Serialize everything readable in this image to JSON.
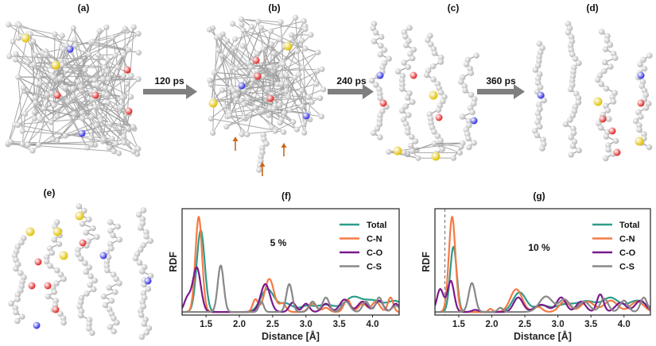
{
  "panels": {
    "a": "(a)",
    "b": "(b)",
    "c": "(c)",
    "d": "(d)",
    "e": "(e)",
    "f": "(f)",
    "g": "(g)"
  },
  "steps": [
    "120 ps",
    "240 ps",
    "360 ps"
  ],
  "colors": {
    "carbon": "#b4b4b4",
    "nitrogen": "#2a2ae0",
    "oxygen": "#e02020",
    "sulfur": "#e0c000",
    "arrow": "#7f7f7f",
    "marker_arrow": "#c8671a"
  },
  "chart_data": [
    {
      "type": "line",
      "panel": "(f)",
      "annotation": "5 %",
      "xlabel": "Distance [Å]",
      "ylabel": "RDF",
      "xlim": [
        1.14,
        4.4
      ],
      "ylim": [
        -0.03,
        1.0
      ],
      "xticks": [
        "1.5",
        "2.0",
        "2.5",
        "3.0",
        "3.5",
        "4.0"
      ],
      "legend": "top-right",
      "vline": null,
      "series": [
        {
          "name": "Total",
          "color": "#2e9c8a",
          "peaks": [
            [
              1.42,
              0.79,
              0.06
            ],
            [
              2.42,
              0.22,
              0.1
            ],
            [
              2.7,
              0.08,
              0.1
            ],
            [
              3.0,
              0.05,
              0.1
            ],
            [
              3.3,
              0.07,
              0.15
            ],
            [
              3.7,
              0.13,
              0.12
            ],
            [
              4.0,
              0.11,
              0.15
            ],
            [
              4.35,
              0.1,
              0.12
            ]
          ]
        },
        {
          "name": "C-N",
          "color": "#f47a45",
          "peaks": [
            [
              1.39,
              0.92,
              0.05
            ],
            [
              2.24,
              0.12,
              0.04
            ],
            [
              2.45,
              0.32,
              0.07
            ],
            [
              2.65,
              0.08,
              0.05
            ],
            [
              3.1,
              0.08,
              0.06
            ],
            [
              3.3,
              0.04,
              0.05
            ],
            [
              3.62,
              0.12,
              0.05
            ],
            [
              3.85,
              0.08,
              0.06
            ],
            [
              4.05,
              0.1,
              0.06
            ],
            [
              4.27,
              0.14,
              0.04
            ]
          ]
        },
        {
          "name": "C-O",
          "color": "#7a1a8c",
          "peaks": [
            [
              1.22,
              0.13,
              0.05
            ],
            [
              1.36,
              0.43,
              0.06
            ],
            [
              2.39,
              0.27,
              0.07
            ],
            [
              2.8,
              0.09,
              0.05
            ],
            [
              3.0,
              0.08,
              0.05
            ],
            [
              3.3,
              0.08,
              0.06
            ],
            [
              3.58,
              0.12,
              0.07
            ],
            [
              3.85,
              0.1,
              0.07
            ],
            [
              4.1,
              0.11,
              0.06
            ],
            [
              4.35,
              0.08,
              0.05
            ]
          ]
        },
        {
          "name": "C-S",
          "color": "#888888",
          "peaks": [
            [
              1.72,
              0.45,
              0.045
            ],
            [
              2.33,
              0.1,
              0.035
            ],
            [
              2.75,
              0.27,
              0.045
            ],
            [
              3.1,
              0.1,
              0.05
            ],
            [
              3.3,
              0.14,
              0.05
            ],
            [
              3.6,
              0.1,
              0.06
            ],
            [
              3.9,
              0.1,
              0.05
            ],
            [
              4.1,
              0.14,
              0.05
            ],
            [
              4.35,
              0.06,
              0.06
            ]
          ]
        }
      ]
    },
    {
      "type": "line",
      "panel": "(g)",
      "annotation": "10 %",
      "xlabel": "Distance [Å]",
      "ylabel": "RDF",
      "xlim": [
        1.14,
        4.4
      ],
      "ylim": [
        -0.03,
        1.0
      ],
      "xticks": [
        "1.5",
        "2.0",
        "2.5",
        "3.0",
        "3.5",
        "4.0"
      ],
      "legend": "top-right",
      "vline": 1.29,
      "series": [
        {
          "name": "Total",
          "color": "#2e9c8a",
          "peaks": [
            [
              1.42,
              0.63,
              0.05
            ],
            [
              2.42,
              0.19,
              0.1
            ],
            [
              2.75,
              0.06,
              0.1
            ],
            [
              3.1,
              0.07,
              0.15
            ],
            [
              3.45,
              0.1,
              0.15
            ],
            [
              3.8,
              0.13,
              0.12
            ],
            [
              4.2,
              0.11,
              0.15
            ]
          ]
        },
        {
          "name": "C-N",
          "color": "#f47a45",
          "peaks": [
            [
              1.4,
              0.92,
              0.05
            ],
            [
              1.98,
              0.03,
              0.03
            ],
            [
              2.37,
              0.22,
              0.09
            ],
            [
              2.7,
              0.05,
              0.06
            ],
            [
              3.1,
              0.1,
              0.08
            ],
            [
              3.45,
              0.1,
              0.1
            ],
            [
              3.8,
              0.11,
              0.1
            ],
            [
              4.2,
              0.1,
              0.1
            ]
          ]
        },
        {
          "name": "C-O",
          "color": "#7a1a8c",
          "peaks": [
            [
              1.22,
              0.22,
              0.05
            ],
            [
              1.38,
              0.3,
              0.05
            ],
            [
              1.75,
              0.02,
              0.05
            ],
            [
              2.4,
              0.14,
              0.07
            ],
            [
              2.75,
              0.07,
              0.1
            ],
            [
              3.05,
              0.14,
              0.07
            ],
            [
              3.35,
              0.1,
              0.07
            ],
            [
              3.64,
              0.17,
              0.05
            ],
            [
              3.95,
              0.09,
              0.08
            ],
            [
              4.25,
              0.11,
              0.08
            ]
          ]
        },
        {
          "name": "C-S",
          "color": "#888888",
          "peaks": [
            [
              1.7,
              0.28,
              0.05
            ],
            [
              2.13,
              0.04,
              0.04
            ],
            [
              2.82,
              0.15,
              0.1
            ],
            [
              3.1,
              0.12,
              0.08
            ],
            [
              3.4,
              0.1,
              0.08
            ],
            [
              3.7,
              0.13,
              0.06
            ],
            [
              4.0,
              0.11,
              0.06
            ],
            [
              4.3,
              0.14,
              0.05
            ]
          ]
        }
      ]
    }
  ]
}
